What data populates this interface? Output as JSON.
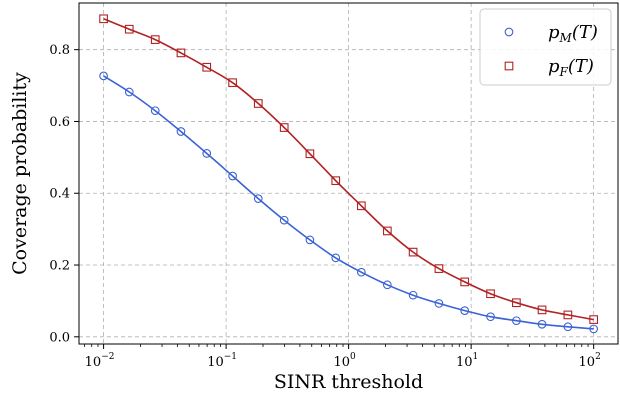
{
  "chart_data": {
    "type": "scatter",
    "xscale": "log",
    "xlim": [
      0.0063,
      158
    ],
    "ylim": [
      -0.02,
      0.93
    ],
    "xlabel": "SINR threshold",
    "ylabel": "Coverage probability",
    "grid": true,
    "legend_position": "top-right",
    "yticks": [
      {
        "value": 0.0,
        "label": "0.0"
      },
      {
        "value": 0.2,
        "label": "0.2"
      },
      {
        "value": 0.4,
        "label": "0.4"
      },
      {
        "value": 0.6,
        "label": "0.6"
      },
      {
        "value": 0.8,
        "label": "0.8"
      }
    ],
    "xticks": [
      {
        "value": 0.01,
        "base": "10",
        "exp": "−2"
      },
      {
        "value": 0.1,
        "base": "10",
        "exp": "−1"
      },
      {
        "value": 1,
        "base": "10",
        "exp": "0"
      },
      {
        "value": 10,
        "base": "10",
        "exp": "1"
      },
      {
        "value": 100,
        "base": "10",
        "exp": "2"
      }
    ],
    "series": [
      {
        "name": "pM(T)",
        "legend_main": "p",
        "legend_sub": "M",
        "legend_tail": "(T)",
        "color": "#3b62d6",
        "marker": "circle",
        "x": [
          0.01,
          0.0162,
          0.0264,
          0.0428,
          0.0695,
          0.113,
          0.183,
          0.298,
          0.483,
          0.785,
          1.27,
          2.07,
          3.36,
          5.46,
          8.86,
          14.4,
          23.4,
          37.9,
          61.6,
          100
        ],
        "y": [
          0.727,
          0.682,
          0.63,
          0.572,
          0.511,
          0.448,
          0.385,
          0.325,
          0.27,
          0.22,
          0.18,
          0.145,
          0.116,
          0.093,
          0.073,
          0.056,
          0.045,
          0.035,
          0.028,
          0.022
        ]
      },
      {
        "name": "pF(T)",
        "legend_main": "p",
        "legend_sub": "F",
        "legend_tail": "(T)",
        "color": "#b22222",
        "marker": "square",
        "x": [
          0.01,
          0.0162,
          0.0264,
          0.0428,
          0.0695,
          0.113,
          0.183,
          0.298,
          0.483,
          0.785,
          1.27,
          2.07,
          3.36,
          5.46,
          8.86,
          14.4,
          23.4,
          37.9,
          61.6,
          100
        ],
        "y": [
          0.886,
          0.857,
          0.828,
          0.791,
          0.751,
          0.708,
          0.65,
          0.583,
          0.51,
          0.435,
          0.365,
          0.295,
          0.236,
          0.19,
          0.153,
          0.12,
          0.095,
          0.075,
          0.061,
          0.048
        ]
      }
    ]
  }
}
